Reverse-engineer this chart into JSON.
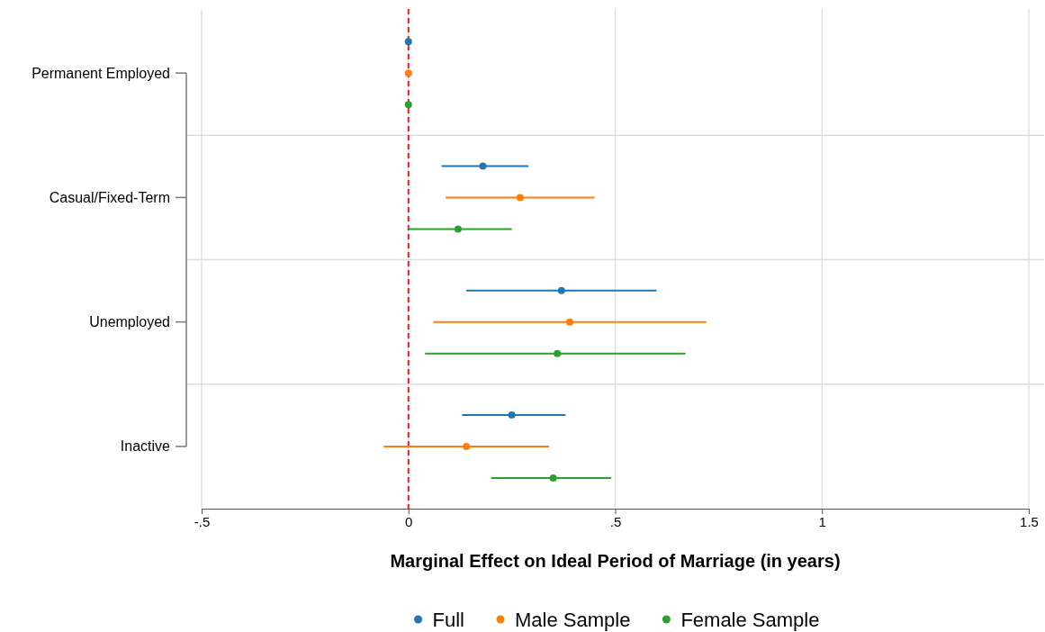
{
  "chart_data": {
    "type": "scatter",
    "orientation": "horizontal",
    "xlabel": "Marginal Effect on Ideal Period of Marriage (in years)",
    "categories": [
      "Permanent Employed",
      "Casual/Fixed-Term",
      "Unemployed",
      "Inactive"
    ],
    "xlim": [
      -0.5,
      1.5
    ],
    "xticks": [
      {
        "value": -0.5,
        "label": "-.5"
      },
      0,
      {
        "value": 0.5,
        "label": ".5"
      },
      1,
      1.5
    ],
    "grid": true,
    "legend": "bottom",
    "marker": "circle",
    "ref_lines": [
      {
        "axis": "x",
        "value": 0,
        "color": "#e8201e",
        "line_style": "dashed"
      }
    ],
    "series": [
      {
        "name": "Full",
        "color": "#1f77b4",
        "values": [
          0,
          0.18,
          0.37,
          0.25
        ],
        "errors": [
          null,
          [
            0.08,
            0.29
          ],
          [
            0.14,
            0.6
          ],
          [
            0.13,
            0.38
          ]
        ]
      },
      {
        "name": "Male Sample",
        "color": "#ff7f0e",
        "values": [
          0,
          0.27,
          0.39,
          0.14
        ],
        "errors": [
          null,
          [
            0.09,
            0.45
          ],
          [
            0.06,
            0.72
          ],
          [
            -0.06,
            0.34
          ]
        ]
      },
      {
        "name": "Female Sample",
        "color": "#2ca02c",
        "values": [
          0,
          0.12,
          0.36,
          0.35
        ],
        "errors": [
          null,
          [
            0.0,
            0.25
          ],
          [
            0.04,
            0.67
          ],
          [
            0.2,
            0.49
          ]
        ]
      }
    ]
  }
}
